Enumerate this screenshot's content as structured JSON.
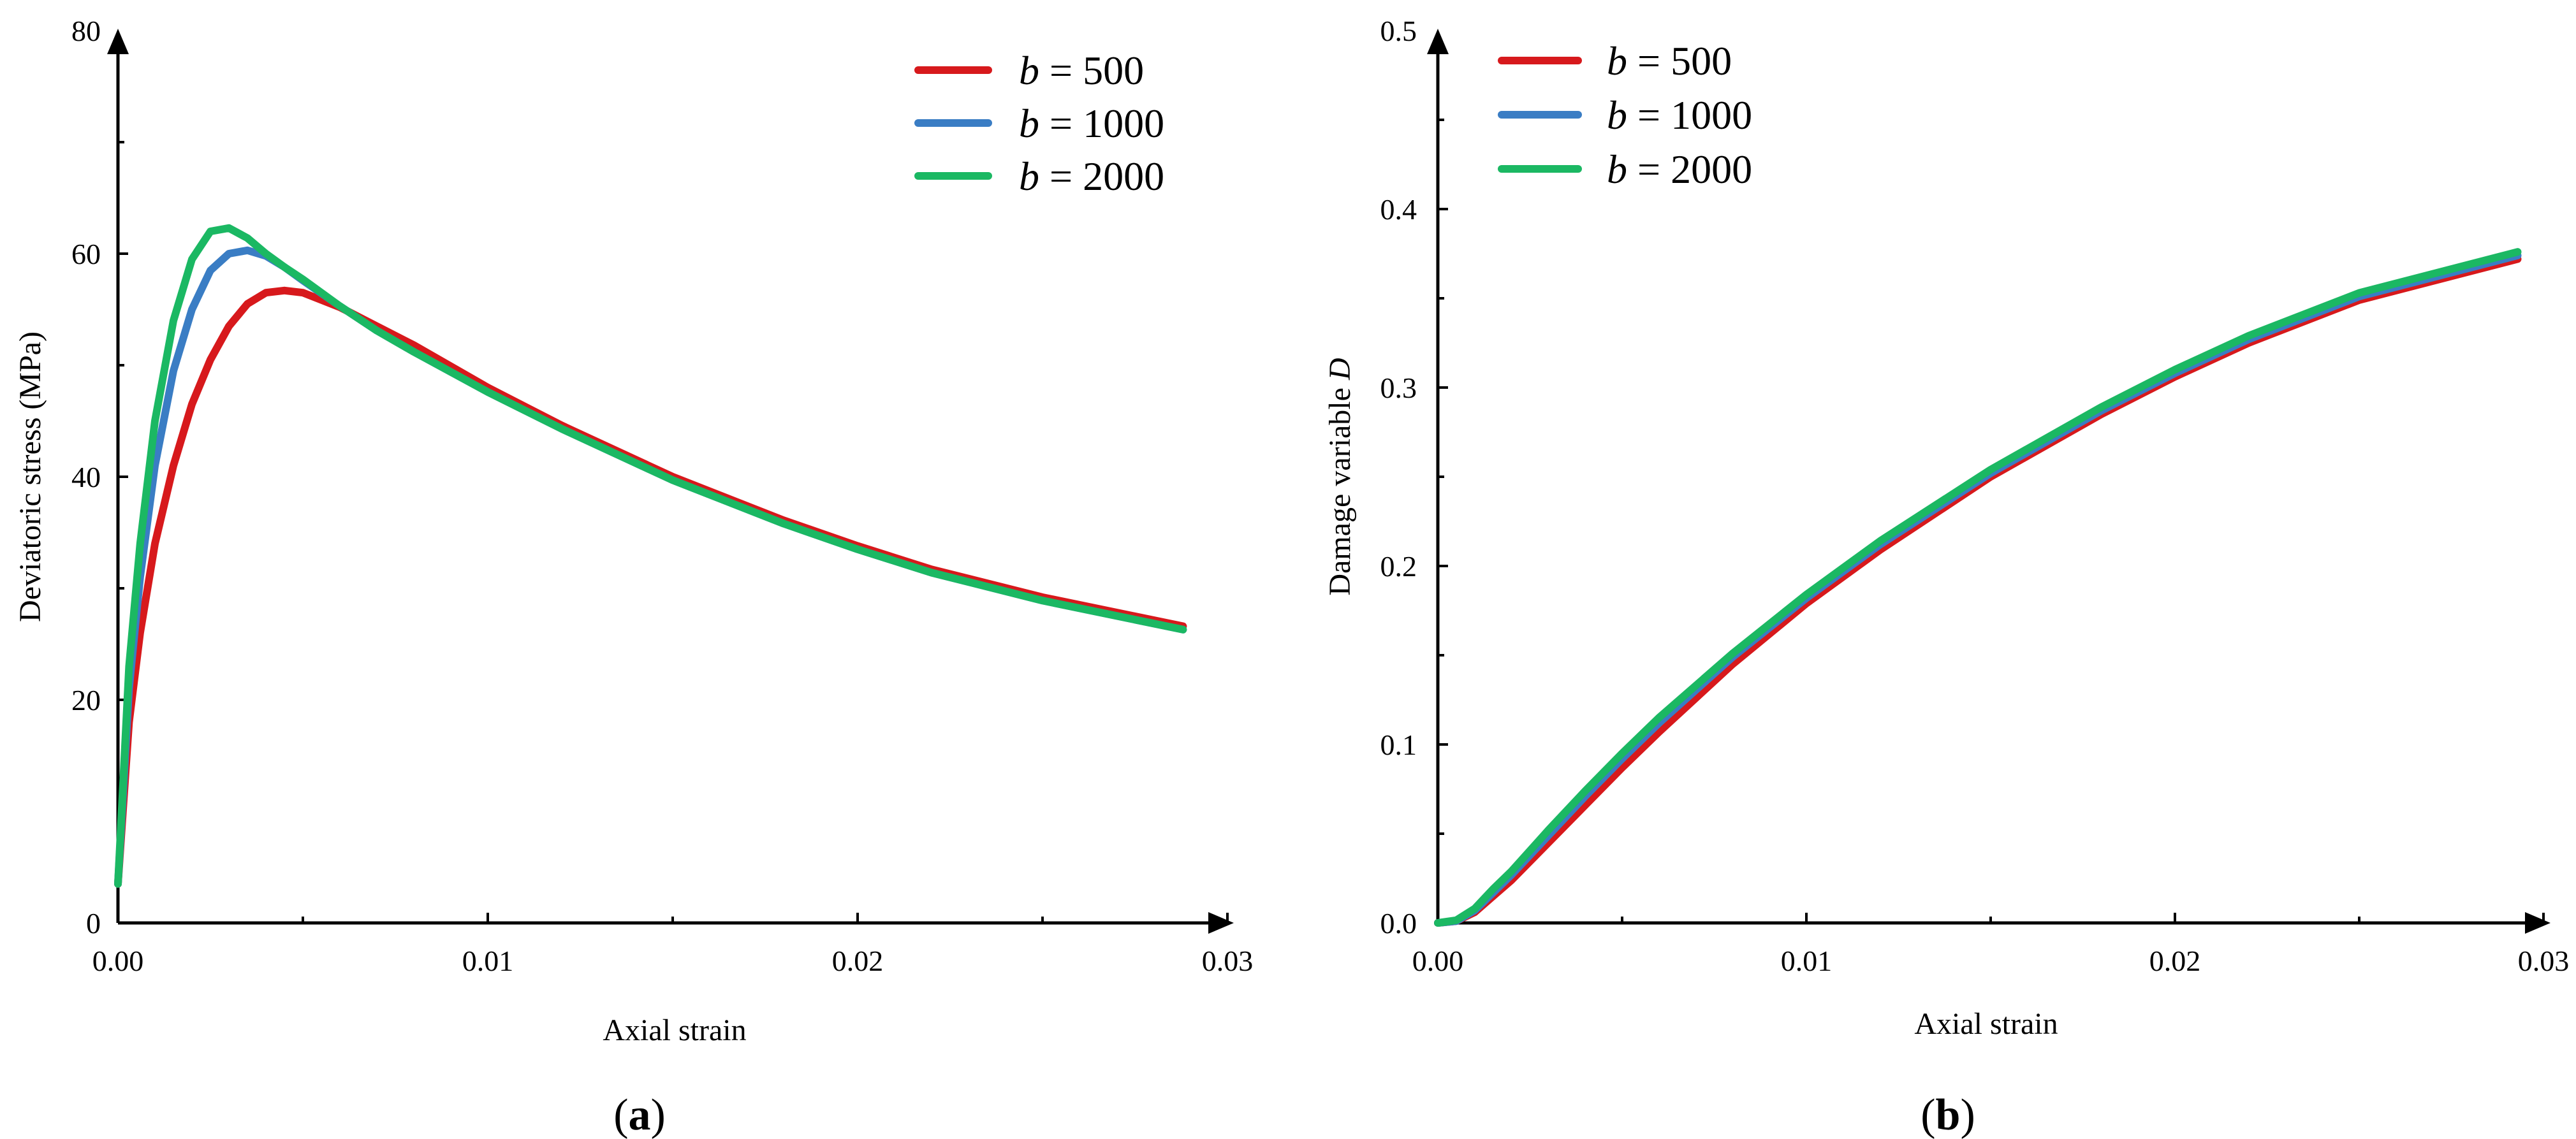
{
  "panels": {
    "a": {
      "label_paren_open": "(",
      "label_letter": "a",
      "label_paren_close": ")"
    },
    "b": {
      "label_paren_open": "(",
      "label_letter": "b",
      "label_paren_close": ")"
    }
  },
  "legend": {
    "var": "b",
    "eq": " = ",
    "values": [
      "500",
      "1000",
      "2000"
    ]
  },
  "series_colors": {
    "b500": "#d7191c",
    "b1000": "#3a7dc4",
    "b2000": "#1bb863"
  },
  "chart_data": [
    {
      "id": "a",
      "type": "line",
      "title": "",
      "xlabel": "Axial strain",
      "ylabel": "Deviatoric stress (MPa)",
      "xlim": [
        0,
        0.03
      ],
      "ylim": [
        0,
        80
      ],
      "xticks": [
        0,
        0.01,
        0.02,
        0.03
      ],
      "xtick_labels": [
        "0.00",
        "0.01",
        "0.02",
        "0.03"
      ],
      "yticks": [
        0,
        20,
        40,
        60,
        80
      ],
      "ytick_labels": [
        "0",
        "20",
        "40",
        "60",
        "80"
      ],
      "grid": false,
      "legend_position": "top-right",
      "series": [
        {
          "name": "b = 500",
          "color_key": "b500",
          "x": [
            0,
            0.0003,
            0.0006,
            0.001,
            0.0015,
            0.002,
            0.0025,
            0.003,
            0.0035,
            0.004,
            0.0045,
            0.005,
            0.006,
            0.007,
            0.008,
            0.01,
            0.012,
            0.015,
            0.018,
            0.02,
            0.022,
            0.025,
            0.0288
          ],
          "y": [
            3.5,
            18,
            26,
            34,
            41,
            46.5,
            50.5,
            53.5,
            55.5,
            56.5,
            56.7,
            56.5,
            55.2,
            53.5,
            51.8,
            48.0,
            44.6,
            40.0,
            36.1,
            33.8,
            31.7,
            29.2,
            26.6
          ]
        },
        {
          "name": "b = 1000",
          "color_key": "b1000",
          "x": [
            0,
            0.0003,
            0.0006,
            0.001,
            0.0015,
            0.002,
            0.0025,
            0.003,
            0.0035,
            0.004,
            0.0045,
            0.005,
            0.006,
            0.007,
            0.008,
            0.01,
            0.012,
            0.015,
            0.018,
            0.02,
            0.022,
            0.025,
            0.0288
          ],
          "y": [
            3.5,
            21,
            31,
            41,
            49.5,
            55,
            58.5,
            60,
            60.3,
            59.8,
            58.8,
            57.6,
            55.3,
            53.1,
            51.2,
            47.6,
            44.3,
            39.7,
            35.8,
            33.5,
            31.4,
            28.9,
            26.3
          ]
        },
        {
          "name": "b = 2000",
          "color_key": "b2000",
          "x": [
            0,
            0.0003,
            0.0006,
            0.001,
            0.0015,
            0.002,
            0.0025,
            0.003,
            0.0035,
            0.004,
            0.0045,
            0.005,
            0.006,
            0.007,
            0.008,
            0.01,
            0.012,
            0.015,
            0.018,
            0.02,
            0.022,
            0.025,
            0.0288
          ],
          "y": [
            3.5,
            23,
            34,
            45,
            54,
            59.5,
            62,
            62.3,
            61.4,
            60,
            58.8,
            57.7,
            55.3,
            53.1,
            51.2,
            47.6,
            44.3,
            39.7,
            35.8,
            33.5,
            31.4,
            28.9,
            26.3
          ]
        }
      ]
    },
    {
      "id": "b",
      "type": "line",
      "title": "",
      "xlabel": "Axial strain",
      "ylabel": "Damage variable D",
      "ylabel_text": "Damage variable ",
      "ylabel_symbol": "D",
      "xlim": [
        0,
        0.03
      ],
      "ylim": [
        0,
        0.5
      ],
      "xticks": [
        0,
        0.01,
        0.02,
        0.03
      ],
      "xtick_labels": [
        "0.00",
        "0.01",
        "0.02",
        "0.03"
      ],
      "yticks": [
        0,
        0.1,
        0.2,
        0.3,
        0.4,
        0.5
      ],
      "ytick_labels": [
        "0.0",
        "0.1",
        "0.2",
        "0.3",
        "0.4",
        "0.5"
      ],
      "grid": false,
      "legend_position": "top-left",
      "series": [
        {
          "name": "b = 500",
          "color_key": "b500",
          "x": [
            0,
            0.0005,
            0.001,
            0.0015,
            0.002,
            0.003,
            0.004,
            0.005,
            0.006,
            0.008,
            0.01,
            0.012,
            0.015,
            0.018,
            0.02,
            0.022,
            0.025,
            0.0293
          ],
          "y": [
            0,
            0.001,
            0.006,
            0.015,
            0.024,
            0.045,
            0.066,
            0.087,
            0.107,
            0.145,
            0.179,
            0.209,
            0.25,
            0.285,
            0.306,
            0.325,
            0.349,
            0.372
          ]
        },
        {
          "name": "b = 1000",
          "color_key": "b1000",
          "x": [
            0,
            0.0005,
            0.001,
            0.0015,
            0.002,
            0.003,
            0.004,
            0.005,
            0.006,
            0.008,
            0.01,
            0.012,
            0.015,
            0.018,
            0.02,
            0.022,
            0.025,
            0.0293
          ],
          "y": [
            0,
            0.001,
            0.007,
            0.017,
            0.027,
            0.049,
            0.071,
            0.092,
            0.112,
            0.149,
            0.182,
            0.212,
            0.252,
            0.287,
            0.308,
            0.327,
            0.351,
            0.374
          ]
        },
        {
          "name": "b = 2000",
          "color_key": "b2000",
          "x": [
            0,
            0.0005,
            0.001,
            0.0015,
            0.002,
            0.003,
            0.004,
            0.005,
            0.006,
            0.008,
            0.01,
            0.012,
            0.015,
            0.018,
            0.02,
            0.022,
            0.025,
            0.0293
          ],
          "y": [
            0,
            0.0015,
            0.008,
            0.019,
            0.029,
            0.052,
            0.074,
            0.095,
            0.115,
            0.151,
            0.184,
            0.214,
            0.254,
            0.289,
            0.31,
            0.329,
            0.353,
            0.376
          ]
        }
      ]
    }
  ]
}
